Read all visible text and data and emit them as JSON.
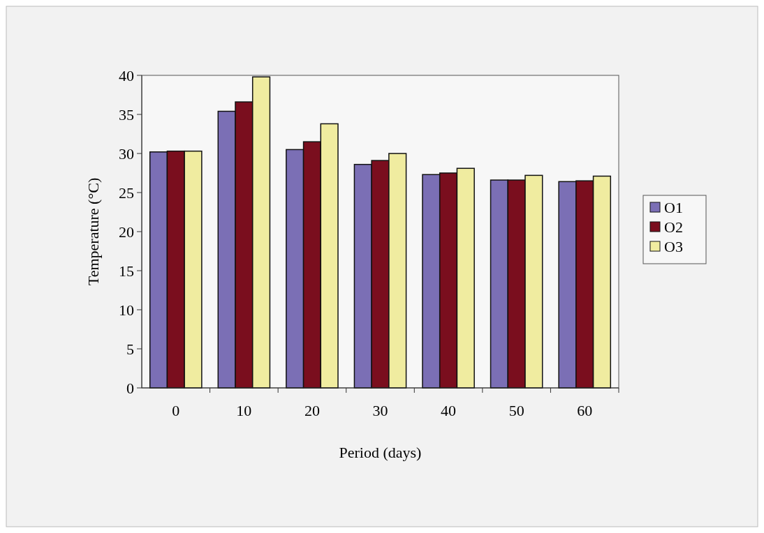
{
  "chart_data": {
    "type": "bar",
    "xlabel": "Period (days)",
    "ylabel": "Temperature (°C)",
    "categories": [
      "0",
      "10",
      "20",
      "30",
      "40",
      "50",
      "60"
    ],
    "series": [
      {
        "name": "O1",
        "color": "#7b6fb5",
        "values": [
          30.2,
          35.4,
          30.5,
          28.6,
          27.3,
          26.6,
          26.4
        ]
      },
      {
        "name": "O2",
        "color": "#7a0e1e",
        "values": [
          30.3,
          36.6,
          31.5,
          29.1,
          27.5,
          26.6,
          26.5
        ]
      },
      {
        "name": "O3",
        "color": "#f0eca0",
        "values": [
          30.3,
          39.8,
          33.8,
          30.0,
          28.1,
          27.2,
          27.1
        ]
      }
    ],
    "ylim": [
      0,
      40
    ],
    "yticks": [
      0,
      5,
      10,
      15,
      20,
      25,
      30,
      35,
      40
    ],
    "grid": false,
    "legend": "right"
  }
}
